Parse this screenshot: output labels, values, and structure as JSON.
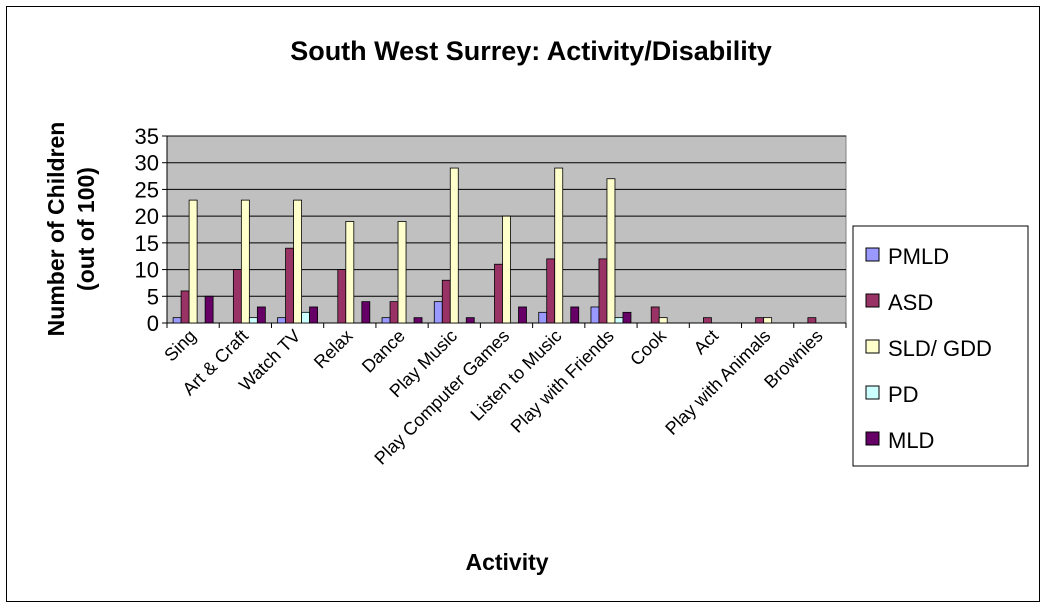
{
  "chart_data": {
    "type": "bar",
    "title": "South West Surrey: Activity/Disability",
    "xlabel": "Activity",
    "ylabel_lines": [
      "Number of Children",
      "(out of 100)"
    ],
    "ylim": [
      0,
      35
    ],
    "yticks": [
      "0",
      "5",
      "10",
      "15",
      "20",
      "25",
      "30",
      "35"
    ],
    "grid": true,
    "legend_position": "right",
    "categories": [
      "Sing",
      "Art & Craft",
      "Watch TV",
      "Relax",
      "Dance",
      "Play Music",
      "Play Computer Games",
      "Listen to Music",
      "Play with Friends",
      "Cook",
      "Act",
      "Play with Animals",
      "Brownies"
    ],
    "series": [
      {
        "name": "PMLD",
        "color": "#9999FF",
        "values": [
          1,
          0,
          1,
          0,
          1,
          4,
          0,
          2,
          3,
          0,
          0,
          0,
          0
        ]
      },
      {
        "name": "ASD",
        "color": "#993366",
        "values": [
          6,
          10,
          14,
          10,
          4,
          8,
          11,
          12,
          12,
          3,
          1,
          1,
          1
        ]
      },
      {
        "name": "SLD/ GDD",
        "color": "#FFFFCC",
        "values": [
          23,
          23,
          23,
          19,
          19,
          29,
          20,
          29,
          27,
          1,
          0,
          1,
          0
        ]
      },
      {
        "name": "PD",
        "color": "#CCFFFF",
        "values": [
          0,
          1,
          2,
          0,
          0,
          0,
          0,
          0,
          1,
          0,
          0,
          0,
          0
        ]
      },
      {
        "name": "MLD",
        "color": "#660066",
        "values": [
          5,
          3,
          3,
          4,
          1,
          1,
          3,
          3,
          2,
          0,
          0,
          0,
          0
        ]
      }
    ],
    "plot_background": "#C0C0C0"
  }
}
